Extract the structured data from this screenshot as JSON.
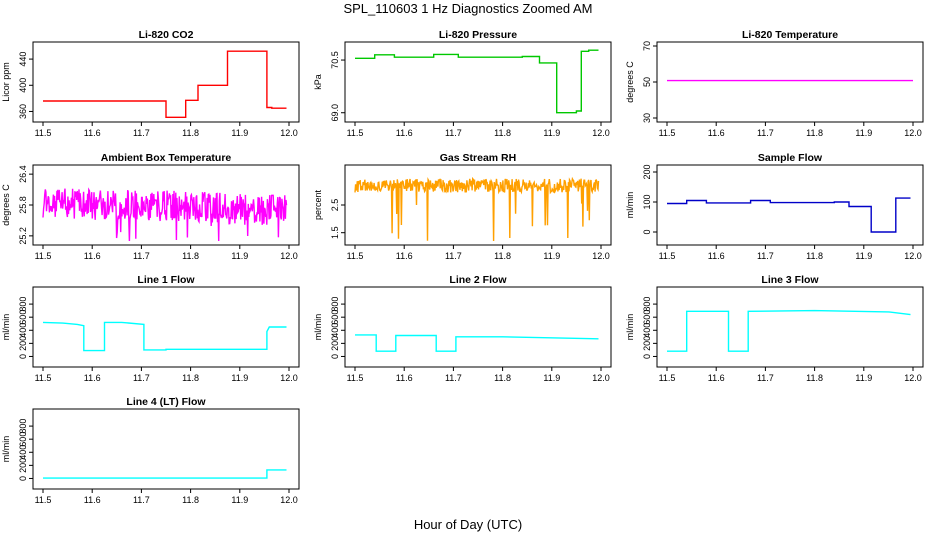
{
  "page": {
    "title": "SPL_110603  1 Hz Diagnostics Zoomed AM",
    "xlabel": "Hour of Day (UTC)"
  },
  "chart_data": [
    {
      "type": "line",
      "title": "Li-820 CO2",
      "ylabel": "Licor ppm",
      "color": "#ff0000",
      "xlim": [
        11.5,
        12.0
      ],
      "x_ticks": [
        "11.5",
        "11.6",
        "11.7",
        "11.8",
        "11.9",
        "12.0"
      ],
      "ylim": [
        350,
        460
      ],
      "y_ticks": [
        "360",
        "400",
        "440"
      ],
      "series": [
        {
          "x": [
            11.5,
            11.75,
            11.75,
            11.79,
            11.79,
            11.815,
            11.815,
            11.845,
            11.845,
            11.875,
            11.875,
            11.955,
            11.955,
            11.965,
            11.965,
            11.995
          ],
          "y": [
            376,
            376,
            351,
            351,
            377,
            377,
            400,
            400,
            400,
            400,
            452,
            452,
            366,
            366,
            365,
            365
          ]
        }
      ]
    },
    {
      "type": "line",
      "title": "Li-820 Pressure",
      "ylabel": "kPa",
      "color": "#00c800",
      "xlim": [
        11.5,
        12.0
      ],
      "x_ticks": [
        "11.5",
        "11.6",
        "11.7",
        "11.8",
        "11.9",
        "12.0"
      ],
      "ylim": [
        68.85,
        70.9
      ],
      "y_ticks": [
        "69.0",
        "70.5"
      ],
      "series": [
        {
          "x": [
            11.5,
            11.54,
            11.54,
            11.58,
            11.58,
            11.66,
            11.66,
            11.71,
            11.71,
            11.84,
            11.84,
            11.875,
            11.875,
            11.91,
            11.91,
            11.95,
            11.95,
            11.96,
            11.96,
            11.975,
            11.975,
            11.995
          ],
          "y": [
            70.55,
            70.55,
            70.65,
            70.65,
            70.58,
            70.58,
            70.66,
            70.66,
            70.58,
            70.58,
            70.6,
            70.6,
            70.42,
            70.42,
            69.0,
            69.0,
            69.05,
            69.05,
            70.75,
            70.75,
            70.78,
            70.78
          ]
        }
      ]
    },
    {
      "type": "line",
      "title": "Li-820 Temperature",
      "ylabel": "degrees C",
      "color": "#ff00ff",
      "xlim": [
        11.5,
        12.0
      ],
      "x_ticks": [
        "11.5",
        "11.6",
        "11.7",
        "11.8",
        "11.9",
        "12.0"
      ],
      "ylim": [
        30,
        70
      ],
      "y_ticks": [
        "30",
        "50",
        "70"
      ],
      "series": [
        {
          "x": [
            11.5,
            12.0
          ],
          "y": [
            50.8,
            50.8
          ]
        }
      ]
    },
    {
      "type": "line",
      "title": "Ambient Box Temperature",
      "ylabel": "degrees C",
      "color": "#ff00ff",
      "xlim": [
        11.5,
        12.0
      ],
      "x_ticks": [
        "11.5",
        "11.6",
        "11.7",
        "11.8",
        "11.9",
        "12.0"
      ],
      "ylim": [
        25.1,
        26.5
      ],
      "y_ticks": [
        "25.2",
        "25.8",
        "26.4"
      ],
      "series": [
        {
          "x": [
            11.5,
            11.55,
            11.6,
            11.65,
            11.7,
            11.75,
            11.8,
            11.85,
            11.9,
            11.95,
            11.995
          ],
          "y": [
            25.85,
            25.82,
            25.8,
            25.78,
            25.8,
            25.78,
            25.77,
            25.75,
            25.72,
            25.7,
            25.7
          ]
        }
      ],
      "noise": {
        "amplitude": 0.3
      }
    },
    {
      "type": "line",
      "title": "Gas Stream RH",
      "ylabel": "percent",
      "color": "#ffa000",
      "xlim": [
        11.5,
        12.0
      ],
      "x_ticks": [
        "11.5",
        "11.6",
        "11.7",
        "11.8",
        "11.9",
        "12.0"
      ],
      "ylim": [
        1.2,
        3.8
      ],
      "y_ticks": [
        "1.5",
        "2.5"
      ],
      "series": [
        {
          "x": [
            11.5,
            11.6,
            11.7,
            11.8,
            11.9,
            11.995
          ],
          "y": [
            3.2,
            3.2,
            3.2,
            3.2,
            3.2,
            3.2
          ]
        }
      ],
      "noise": {
        "amplitude": 0.25
      }
    },
    {
      "type": "line",
      "title": "Sample Flow",
      "ylabel": "ml/min",
      "color": "#0000c8",
      "xlim": [
        11.5,
        12.0
      ],
      "x_ticks": [
        "11.5",
        "11.6",
        "11.7",
        "11.8",
        "11.9",
        "12.0"
      ],
      "ylim": [
        -30,
        210
      ],
      "y_ticks": [
        "0",
        "100",
        "200"
      ],
      "series": [
        {
          "x": [
            11.5,
            11.54,
            11.54,
            11.58,
            11.58,
            11.67,
            11.67,
            11.71,
            11.71,
            11.84,
            11.84,
            11.87,
            11.87,
            11.915,
            11.915,
            11.955,
            11.955,
            11.965,
            11.965,
            11.995
          ],
          "y": [
            95,
            95,
            105,
            105,
            97,
            97,
            105,
            105,
            98,
            98,
            100,
            100,
            85,
            85,
            0,
            0,
            0,
            0,
            113,
            113
          ]
        }
      ]
    },
    {
      "type": "line",
      "title": "Line 1 Flow",
      "ylabel": "ml/min",
      "color": "#00ffff",
      "xlim": [
        11.5,
        12.0
      ],
      "x_ticks": [
        "11.5",
        "11.6",
        "11.7",
        "11.8",
        "11.9",
        "12.0"
      ],
      "ylim": [
        -100,
        1000
      ],
      "y_ticks": [
        "0",
        "200",
        "400",
        "600",
        "800"
      ],
      "series": [
        {
          "x": [
            11.5,
            11.54,
            11.57,
            11.583,
            11.583,
            11.625,
            11.625,
            11.66,
            11.705,
            11.705,
            11.75,
            11.75,
            11.955,
            11.955,
            11.96,
            11.995
          ],
          "y": [
            520,
            510,
            490,
            470,
            90,
            90,
            520,
            520,
            490,
            100,
            100,
            110,
            110,
            380,
            450,
            450
          ]
        }
      ]
    },
    {
      "type": "line",
      "title": "Line 2 Flow",
      "ylabel": "ml/min",
      "color": "#00ffff",
      "xlim": [
        11.5,
        12.0
      ],
      "x_ticks": [
        "11.5",
        "11.6",
        "11.7",
        "11.8",
        "11.9",
        "12.0"
      ],
      "ylim": [
        -100,
        1000
      ],
      "y_ticks": [
        "0",
        "200",
        "400",
        "600",
        "800"
      ],
      "series": [
        {
          "x": [
            11.5,
            11.543,
            11.543,
            11.583,
            11.583,
            11.665,
            11.665,
            11.705,
            11.705,
            11.8,
            11.995
          ],
          "y": [
            330,
            330,
            80,
            80,
            320,
            320,
            80,
            80,
            300,
            300,
            270
          ]
        }
      ]
    },
    {
      "type": "line",
      "title": "Line 3 Flow",
      "ylabel": "ml/min",
      "color": "#00ffff",
      "xlim": [
        11.5,
        12.0
      ],
      "x_ticks": [
        "11.5",
        "11.6",
        "11.7",
        "11.8",
        "11.9",
        "12.0"
      ],
      "ylim": [
        -100,
        1000
      ],
      "y_ticks": [
        "0",
        "200",
        "400",
        "600",
        "800"
      ],
      "series": [
        {
          "x": [
            11.5,
            11.54,
            11.54,
            11.625,
            11.625,
            11.665,
            11.665,
            11.8,
            11.95,
            11.995
          ],
          "y": [
            80,
            80,
            690,
            690,
            80,
            80,
            690,
            700,
            680,
            640
          ]
        }
      ]
    },
    {
      "type": "line",
      "title": "Line 4 (LT) Flow",
      "ylabel": "ml/min",
      "color": "#00ffff",
      "xlim": [
        11.5,
        12.0
      ],
      "x_ticks": [
        "11.5",
        "11.6",
        "11.7",
        "11.8",
        "11.9",
        "12.0"
      ],
      "ylim": [
        -100,
        1000
      ],
      "y_ticks": [
        "0",
        "200",
        "400",
        "600",
        "800"
      ],
      "series": [
        {
          "x": [
            11.5,
            11.955,
            11.955,
            11.995
          ],
          "y": [
            5,
            5,
            130,
            130
          ]
        }
      ]
    }
  ]
}
